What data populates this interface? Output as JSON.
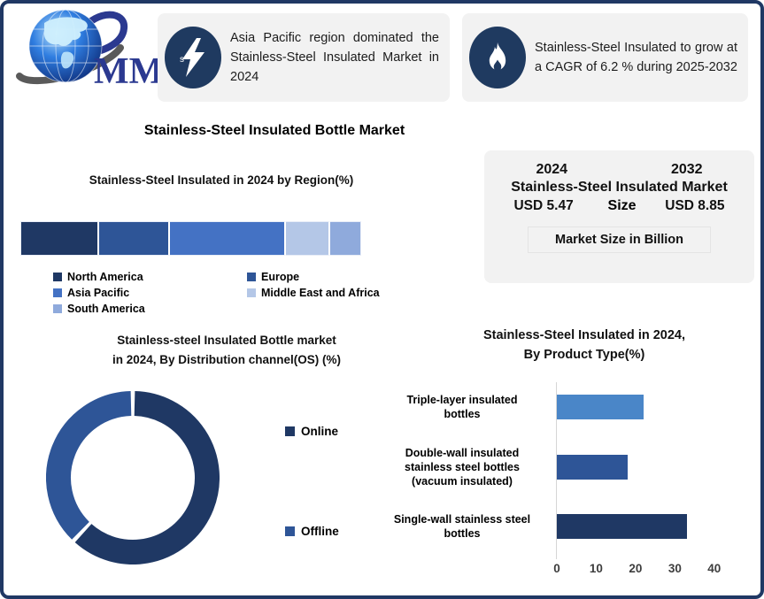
{
  "frame": {
    "border_color": "#203864",
    "background": "#FFFFFF"
  },
  "logo": {
    "icon": "globe-swoosh-logo-icon",
    "text": "MMR",
    "text_color": "#2B3990"
  },
  "callouts": [
    {
      "icon": "lightning-bolt-icon",
      "icon_bg": "#1F3A60",
      "text": "Asia Pacific region dominated the Stainless-Steel Insulated Market in 2024"
    },
    {
      "icon": "flame-icon",
      "icon_bg": "#1F3A60",
      "text": "Stainless-Steel Insulated to grow at a CAGR of 6.2 % during 2025-2032"
    }
  ],
  "main_title": "Stainless-Steel Insulated Bottle Market",
  "market_size_box": {
    "year_left": "2024",
    "year_right": "2032",
    "title_line": "Stainless-Steel Insulated Market",
    "value_left": "USD 5.47",
    "middle_word": "Size",
    "value_right": "USD 8.85",
    "value_color": "#1F75BC",
    "footer": "Market Size in Billion"
  },
  "chart_data": [
    {
      "type": "bar",
      "subtype": "stacked-horizontal",
      "title": "Stainless-Steel Insulated in 2024 by Region(%)",
      "categories": [
        "North America",
        "Europe",
        "Asia Pacific",
        "Middle East and Africa",
        "South America"
      ],
      "values": [
        23,
        21,
        34,
        13,
        9
      ],
      "colors": [
        "#1F3864",
        "#2E5597",
        "#4472C4",
        "#B4C7E7",
        "#8FAADC"
      ],
      "legend_position": "bottom",
      "grid": false
    },
    {
      "type": "pie",
      "subtype": "donut",
      "title": "Stainless-steel Insulated Bottle market in 2024, By Distribution channel(OS) (%)",
      "title_lines": [
        "Stainless-steel Insulated Bottle market",
        "in 2024, By Distribution channel(OS) (%)"
      ],
      "categories": [
        "Online",
        "Offline"
      ],
      "values": [
        62,
        38
      ],
      "colors": [
        "#1F3864",
        "#2E5597"
      ],
      "legend_position": "right"
    },
    {
      "type": "bar",
      "subtype": "horizontal",
      "title": "Stainless-Steel Insulated in 2024, By Product Type(%)",
      "title_lines": [
        "Stainless-Steel Insulated in 2024,",
        "By Product Type(%)"
      ],
      "categories": [
        "Triple-layer insulated bottles",
        "Double-wall insulated stainless steel bottles (vacuum insulated)",
        "Single-wall stainless steel bottles"
      ],
      "category_lines": [
        [
          "Triple-layer insulated",
          "bottles"
        ],
        [
          "Double-wall insulated",
          "stainless steel bottles",
          "(vacuum insulated)"
        ],
        [
          "Single-wall stainless steel",
          "bottles"
        ]
      ],
      "values": [
        22,
        18,
        33
      ],
      "colors": [
        "#4A86C8",
        "#2E5597",
        "#1F3864"
      ],
      "xlim": [
        0,
        45
      ],
      "xticks": [
        0,
        10,
        20,
        30,
        40
      ],
      "xlabel": "",
      "ylabel": "",
      "grid": false
    }
  ]
}
